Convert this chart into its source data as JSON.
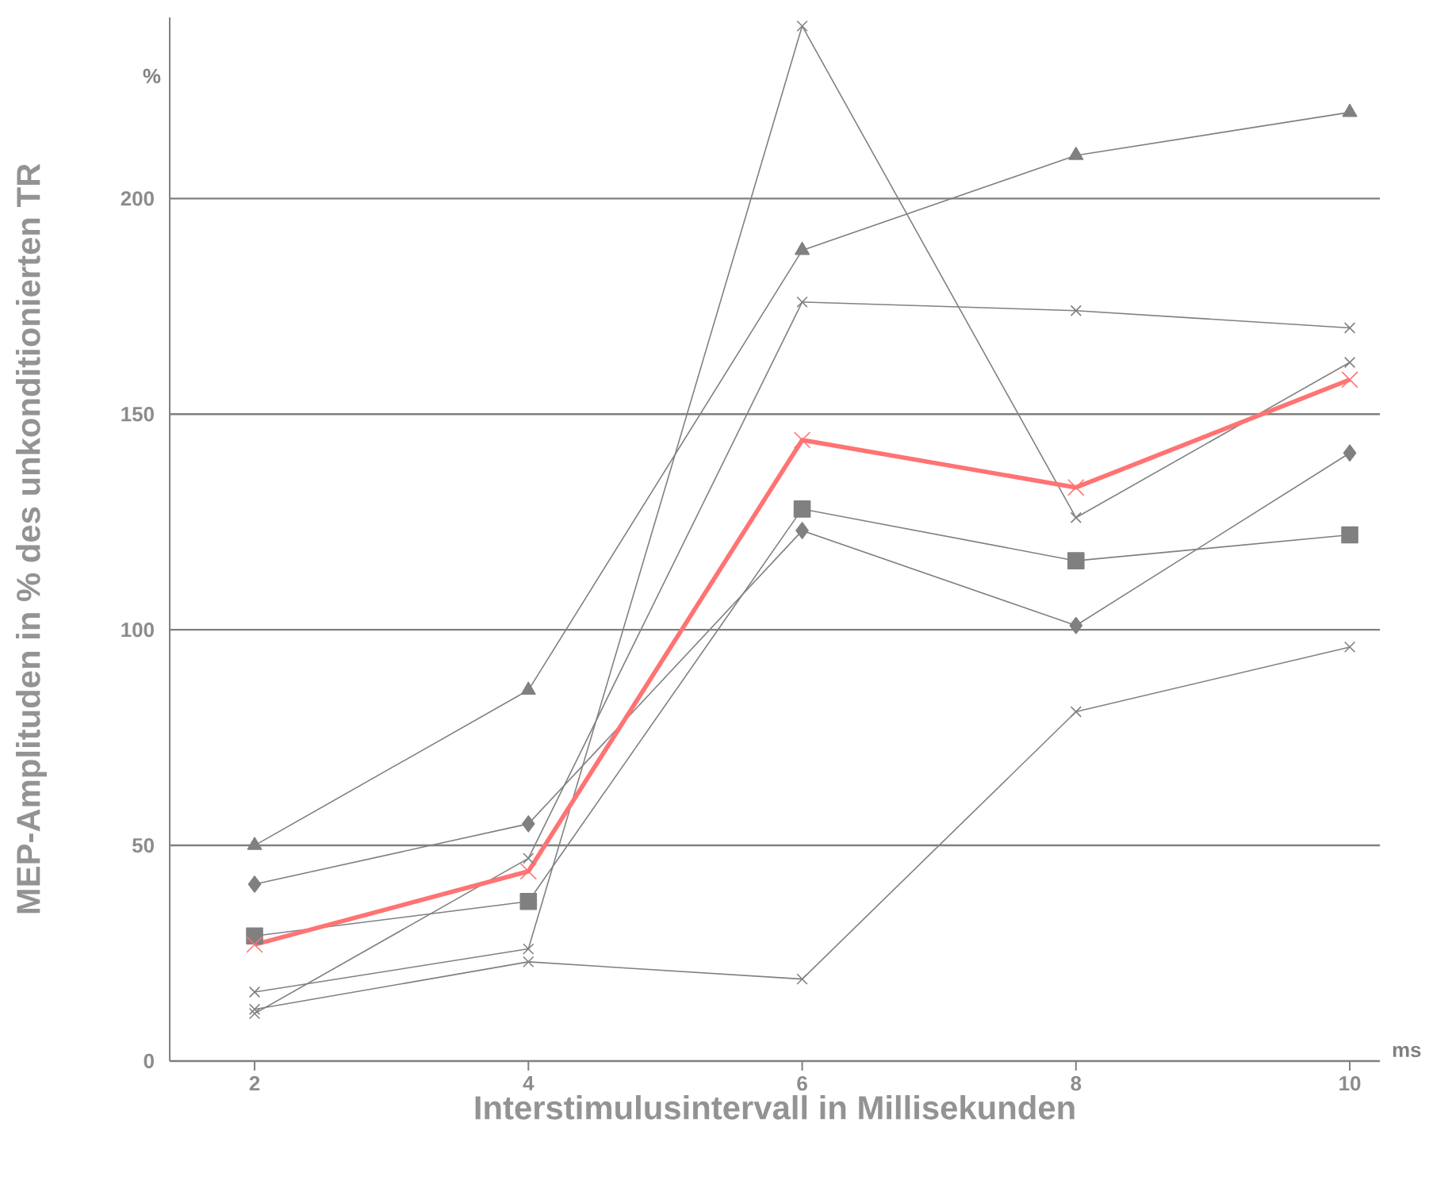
{
  "chart_data": {
    "type": "line",
    "xlabel": "Interstimulusintervall in Millisekunden",
    "ylabel": "MEP-Amplituden in % des unkonditionierten TR",
    "categories": [
      "2",
      "4",
      "6",
      "8",
      "10"
    ],
    "series": [
      {
        "color": "#808080",
        "marker": "triangle",
        "values": [
          50,
          86,
          188,
          210,
          220
        ]
      },
      {
        "color": "#808080",
        "marker": "diamond",
        "values": [
          41,
          55,
          123,
          101,
          141
        ]
      },
      {
        "color": "#808080",
        "marker": "square",
        "values": [
          29,
          37,
          128,
          116,
          122
        ]
      },
      {
        "color": "#808080",
        "marker": "cross",
        "values": [
          16,
          26,
          240,
          126,
          162
        ]
      },
      {
        "color": "#808080",
        "marker": "cross",
        "values": [
          11,
          47,
          176,
          174,
          170
        ]
      },
      {
        "color": "#808080",
        "marker": "cross",
        "values": [
          12,
          23,
          19,
          81,
          96
        ]
      },
      {
        "color": "#ff7373",
        "marker": "cross",
        "values": [
          27,
          44,
          144,
          133,
          158
        ]
      }
    ],
    "ylim": [
      0,
      242
    ],
    "yticks": [
      0,
      50,
      100,
      150,
      200
    ],
    "grid": "y",
    "annotations": [
      "%",
      "ms"
    ]
  }
}
